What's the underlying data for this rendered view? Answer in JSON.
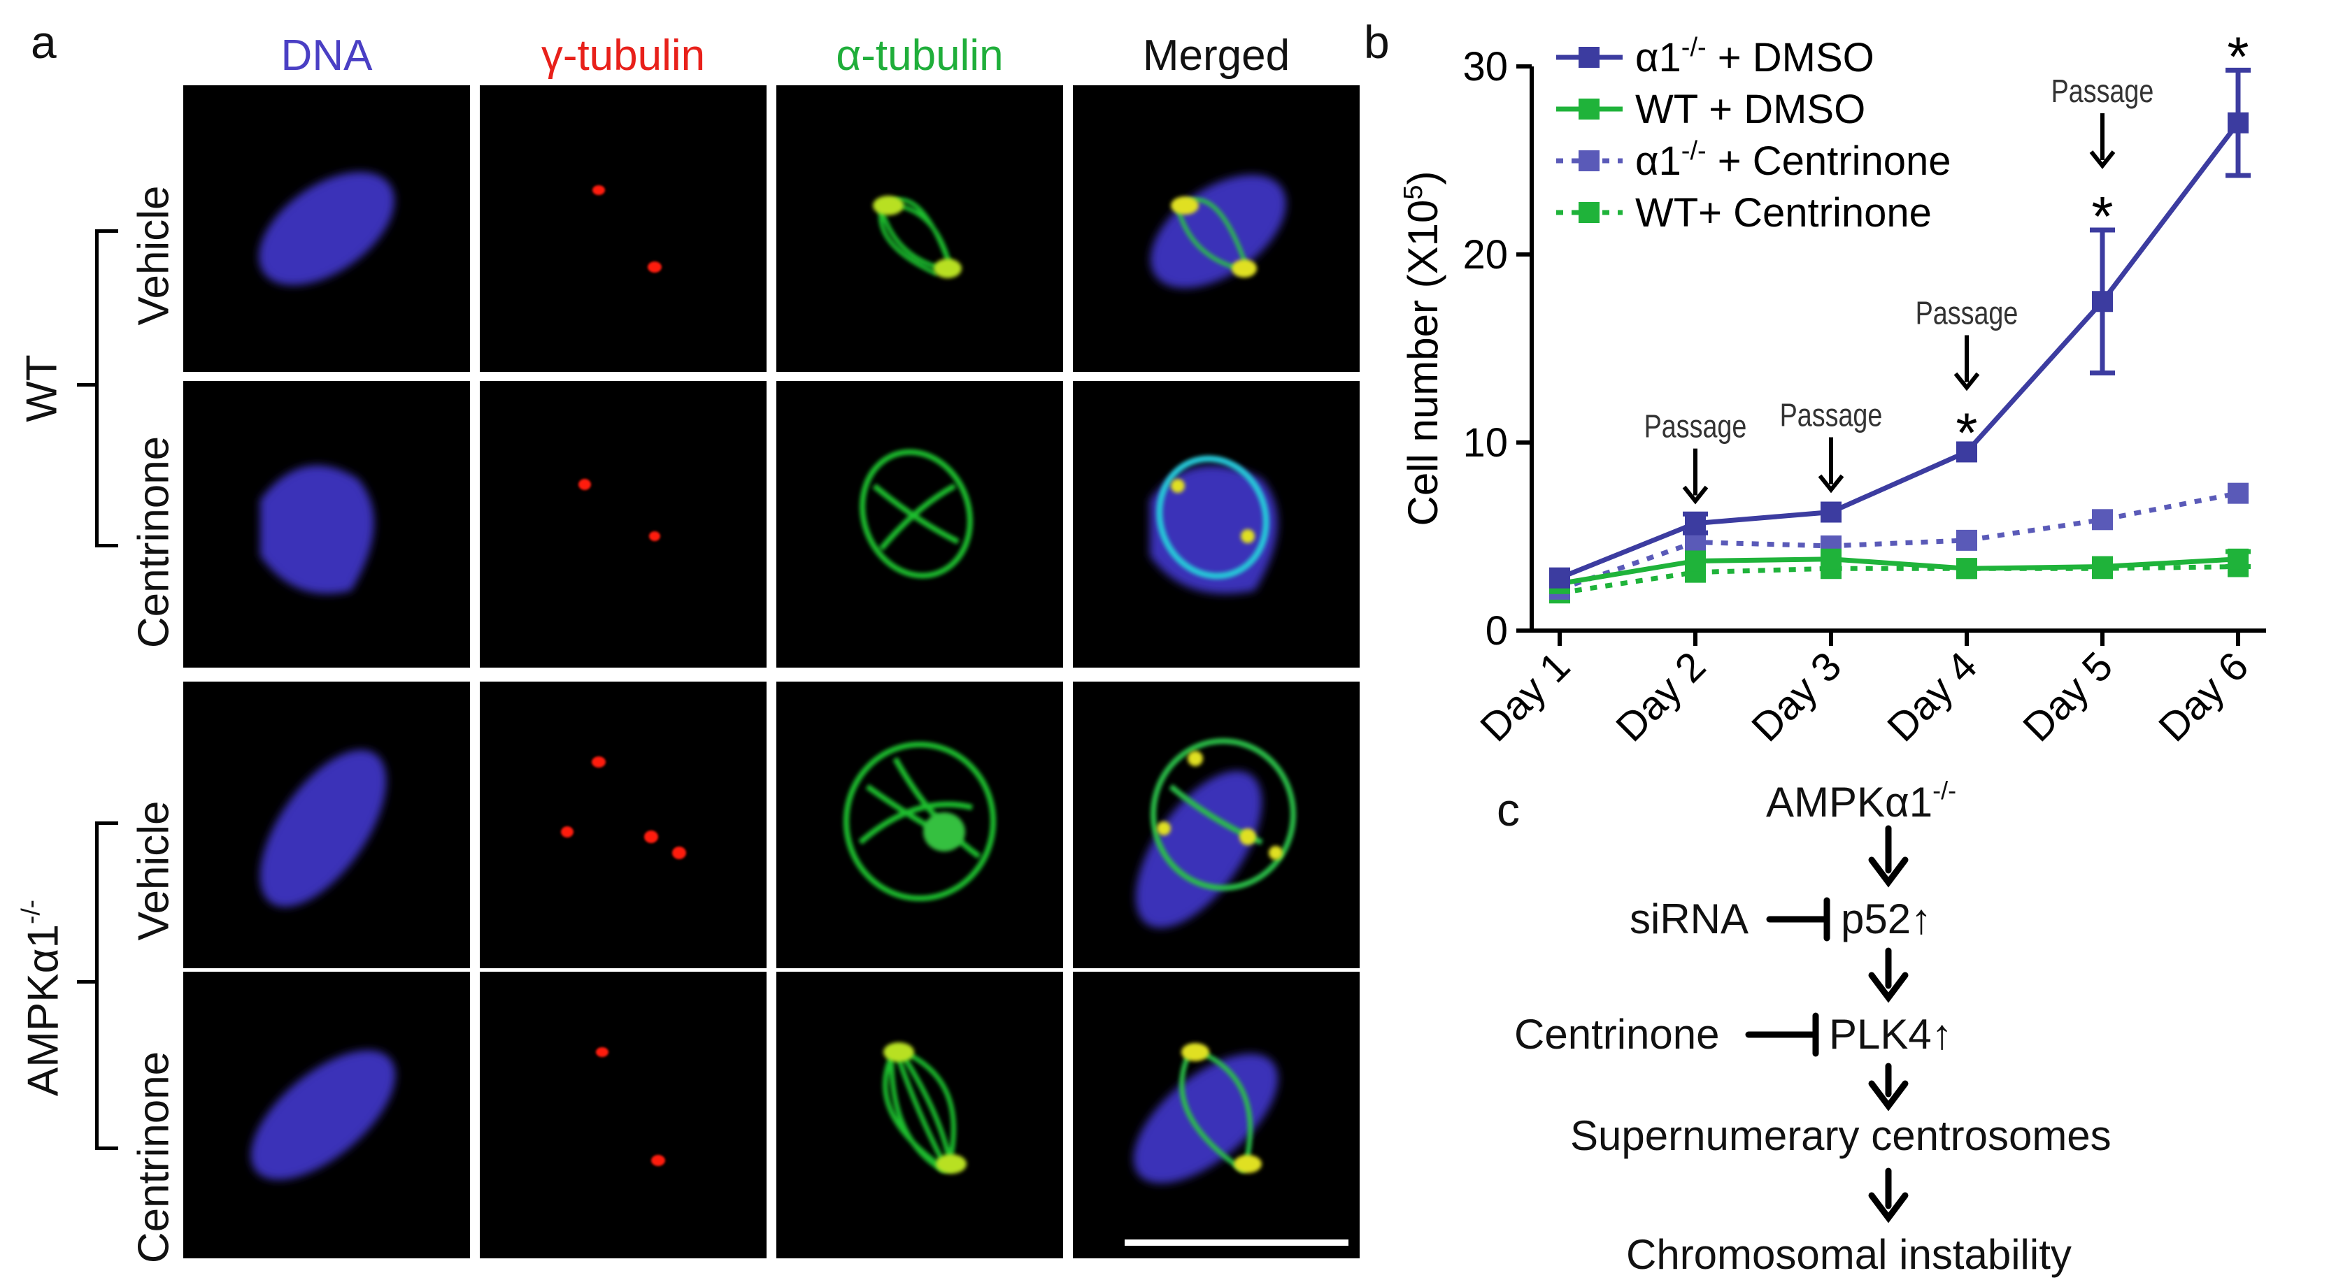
{
  "panels": {
    "a": "a",
    "b": "b",
    "c": "c"
  },
  "panel_a": {
    "columns": [
      {
        "label": "DNA",
        "color": "#4a3fc4"
      },
      {
        "label": "γ-tubulin",
        "color": "#e8201a"
      },
      {
        "label": "α-tubulin",
        "color": "#1fae3a"
      },
      {
        "label": "Merged",
        "color": "#111111"
      }
    ],
    "groups": [
      {
        "label": "WT",
        "rows": [
          "Vehicle",
          "Centrinone"
        ]
      },
      {
        "label": "AMPKα1",
        "label_sup": "-/-",
        "rows": [
          "Vehicle",
          "Centrinone"
        ]
      }
    ]
  },
  "chart_data": {
    "type": "line",
    "ylabel": "Cell number (X10",
    "ylabel_sup": "5",
    "ylabel_end": ")",
    "categories": [
      "Day 1",
      "Day 2",
      "Day 3",
      "Day 4",
      "Day 5",
      "Day 6"
    ],
    "ylim": [
      0,
      30
    ],
    "yticks": [
      "0",
      "10",
      "20",
      "30"
    ],
    "legend_position": "top-left",
    "series": [
      {
        "name": "α1",
        "name_sup": "-/-",
        "name_end": " + DMSO",
        "color": "#3c3ca0",
        "dash": "solid",
        "values": [
          2.8,
          5.7,
          6.3,
          9.5,
          17.5,
          27.0
        ],
        "errors": [
          0.3,
          0.5,
          0.3,
          0.3,
          3.8,
          2.8
        ]
      },
      {
        "name": "WT + DMSO",
        "name_sup": "",
        "name_end": "",
        "color": "#1fb33a",
        "dash": "solid",
        "values": [
          2.5,
          3.7,
          3.8,
          3.3,
          3.4,
          3.8
        ],
        "errors": [
          0.3,
          0.3,
          0.3,
          0.3,
          0.3,
          0.4
        ]
      },
      {
        "name": "α1",
        "name_sup": "-/-",
        "name_end": " + Centrinone",
        "color": "#5a5ab8",
        "dash": "dotted",
        "values": [
          2.2,
          4.7,
          4.5,
          4.8,
          5.9,
          7.3
        ],
        "errors": [
          0.3,
          0.3,
          0.3,
          0.3,
          0.3,
          0.3
        ]
      },
      {
        "name": "WT+ Centrinone",
        "name_sup": "",
        "name_end": "",
        "color": "#1fb33a",
        "dash": "dotted",
        "values": [
          2.0,
          3.1,
          3.3,
          3.3,
          3.3,
          3.4
        ],
        "errors": [
          0.2,
          0.2,
          0.2,
          0.2,
          0.2,
          0.2
        ]
      }
    ],
    "annotations": [
      {
        "text": "Passage",
        "day_index": 1,
        "y": 5.7
      },
      {
        "text": "Passage",
        "day_index": 2,
        "y": 6.3
      },
      {
        "text": "Passage",
        "day_index": 3,
        "y": 9.5
      },
      {
        "text": "Passage",
        "day_index": 4,
        "y": 21.3
      }
    ],
    "significance": [
      {
        "text": "*",
        "day_index": 3
      },
      {
        "text": "*",
        "day_index": 4
      },
      {
        "text": "*",
        "day_index": 5
      }
    ]
  },
  "panel_c": {
    "top": "AMPKα1",
    "top_sup": "-/-",
    "siRNA": "siRNA",
    "p52": "p52↑",
    "centrinone": "Centrinone",
    "plk4": "PLK4↑",
    "supernumerary": "Supernumerary centrosomes",
    "instability": "Chromosomal instability"
  }
}
